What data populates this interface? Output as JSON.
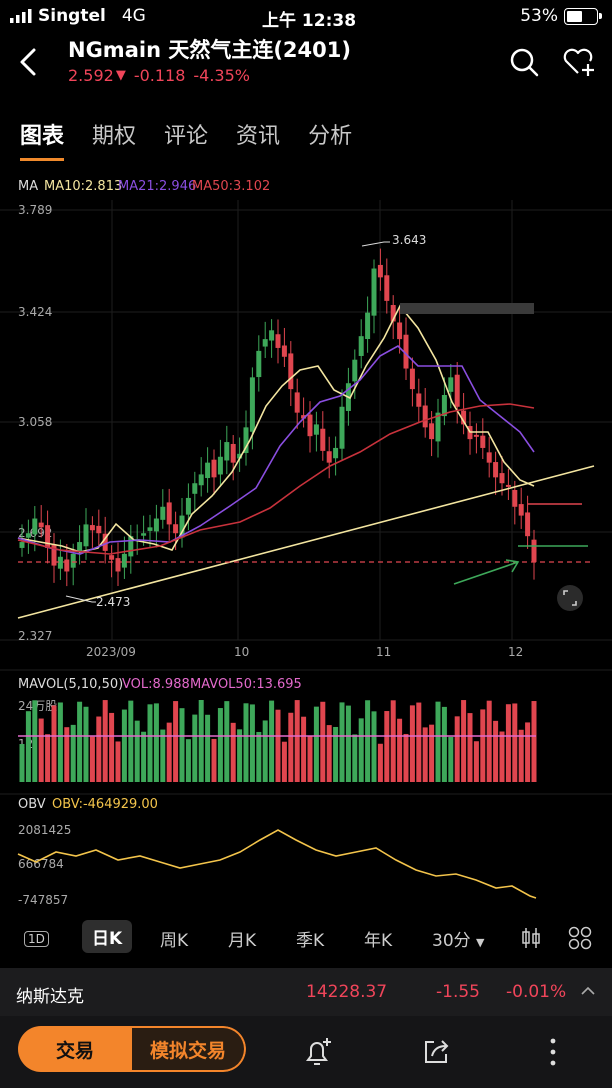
{
  "status": {
    "carrier": "Singtel",
    "network": "4G",
    "time": "上午 12:38",
    "battery": "53%"
  },
  "header": {
    "title": "NGmain  天然气主连(2401)",
    "price": "2.592",
    "change": "-0.118",
    "pct": "-4.35%"
  },
  "tabs": [
    "图表",
    "期权",
    "评论",
    "资讯",
    "分析"
  ],
  "ma_legend": {
    "ma": "MA",
    "ma10": "MA10:2.813",
    "ma21": "MA21:2.946",
    "ma50": "MA50:3.102"
  },
  "price_axis": [
    "3.789",
    "3.424",
    "3.058",
    "2.692",
    "2.327"
  ],
  "annotations": {
    "high": "3.643",
    "low": "2.473"
  },
  "time_axis": [
    "2023/09",
    "10",
    "11",
    "12"
  ],
  "vol_legend": {
    "mavol": "MAVOL(5,10,50)",
    "vol": "VOL:8.988",
    "mavol50": "MAVOL50:13.695"
  },
  "vol_axis": [
    "24万股",
    "12"
  ],
  "obv_legend": {
    "obv": "OBV",
    "value": "OBV:-464929.00"
  },
  "obv_axis": [
    "2081425",
    "666784",
    "-747857"
  ],
  "timeframes": {
    "d1": "1D",
    "day": "日K",
    "week": "周K",
    "month": "月K",
    "quarter": "季K",
    "year": "年K",
    "min30": "30分"
  },
  "index": {
    "name": "纳斯达克",
    "value": "14228.37",
    "change": "-1.55",
    "pct": "-0.01%"
  },
  "actions": {
    "trade": "交易",
    "sim": "模拟交易"
  },
  "colors": {
    "up": "#3ea85a",
    "down": "#e0464f",
    "ma10": "#f3e5a0",
    "ma21": "#8a4ee0",
    "ma50": "#c8323c",
    "accent": "#f3852b"
  },
  "chart_data": {
    "type": "candlestick",
    "price_range": [
      2.327,
      3.789
    ],
    "closes": [
      2.66,
      2.69,
      2.74,
      2.71,
      2.64,
      2.58,
      2.61,
      2.56,
      2.62,
      2.66,
      2.72,
      2.7,
      2.69,
      2.63,
      2.6,
      2.56,
      2.62,
      2.68,
      2.67,
      2.69,
      2.71,
      2.74,
      2.78,
      2.72,
      2.69,
      2.75,
      2.81,
      2.86,
      2.89,
      2.93,
      2.88,
      2.95,
      3.0,
      2.93,
      2.96,
      3.05,
      3.22,
      3.31,
      3.35,
      3.38,
      3.32,
      3.29,
      3.18,
      3.1,
      3.08,
      3.02,
      3.06,
      2.97,
      2.93,
      2.98,
      3.12,
      3.2,
      3.28,
      3.36,
      3.44,
      3.59,
      3.56,
      3.48,
      3.41,
      3.35,
      3.25,
      3.18,
      3.12,
      3.05,
      3.01,
      3.1,
      3.16,
      3.22,
      3.12,
      3.06,
      3.01,
      3.02,
      2.98,
      2.93,
      2.88,
      2.86,
      2.85,
      2.78,
      2.75,
      2.68,
      2.592
    ],
    "obv_range": [
      -747857,
      2081425
    ]
  }
}
